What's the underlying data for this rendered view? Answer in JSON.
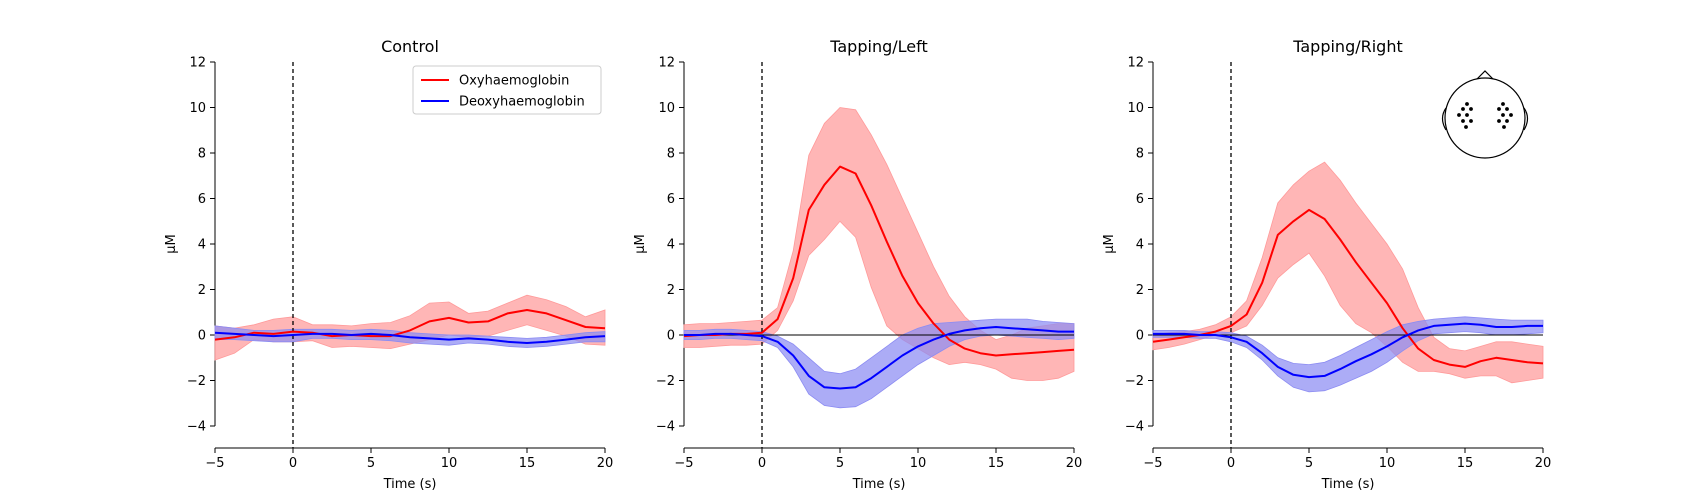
{
  "figure": {
    "background": "#ffffff",
    "colors": {
      "oxy": "#ff0000",
      "oxy_band": "#ff9a9a",
      "deoxy": "#0000ff",
      "deoxy_band": "#8c8cf2"
    }
  },
  "chart_data": [
    {
      "type": "line",
      "title": "Control",
      "xlabel": "Time (s)",
      "ylabel": "µM",
      "xlim": [
        -5,
        20
      ],
      "ylim": [
        -4,
        12
      ],
      "xticks": [
        -5,
        0,
        5,
        10,
        15,
        20
      ],
      "yticks": [
        -4,
        -2,
        0,
        2,
        4,
        6,
        8,
        10,
        12
      ],
      "xtick_labels": [
        "−5",
        "0",
        "5",
        "10",
        "15",
        "20"
      ],
      "ytick_labels": [
        "−4",
        "−2",
        "0",
        "2",
        "4",
        "6",
        "8",
        "10",
        "12"
      ],
      "event_line_x": 0,
      "zero_line": false,
      "grid": false,
      "legend": {
        "position": "top-right",
        "entries": [
          "Oxyhaemoglobin",
          "Deoxyhaemoglobin"
        ]
      },
      "x": [
        -5,
        -3.75,
        -2.5,
        -1.25,
        0,
        1.25,
        2.5,
        3.75,
        5,
        6.25,
        7.5,
        8.75,
        10,
        11.25,
        12.5,
        13.75,
        15,
        16.25,
        17.5,
        18.75,
        20
      ],
      "series": [
        {
          "name": "Oxyhaemoglobin",
          "color": "#ff0000",
          "values": [
            -0.2,
            -0.1,
            0.1,
            0.05,
            0.15,
            0.1,
            -0.05,
            0.0,
            -0.05,
            -0.05,
            0.2,
            0.6,
            0.75,
            0.55,
            0.6,
            0.95,
            1.1,
            0.95,
            0.65,
            0.35,
            0.3
          ],
          "lower": [
            -1.1,
            -0.8,
            -0.2,
            -0.3,
            -0.3,
            -0.25,
            -0.55,
            -0.5,
            -0.55,
            -0.6,
            -0.4,
            -0.2,
            0.0,
            -0.1,
            -0.05,
            0.2,
            0.45,
            0.2,
            -0.05,
            -0.4,
            -0.45
          ],
          "upper": [
            0.4,
            0.3,
            0.45,
            0.7,
            0.8,
            0.45,
            0.45,
            0.4,
            0.5,
            0.55,
            0.85,
            1.4,
            1.45,
            0.95,
            1.05,
            1.4,
            1.75,
            1.55,
            1.25,
            0.8,
            1.1
          ]
        },
        {
          "name": "Deoxyhaemoglobin",
          "color": "#0000ff",
          "values": [
            0.1,
            0.05,
            0.0,
            -0.05,
            0.0,
            0.05,
            0.05,
            0.0,
            0.05,
            0.0,
            -0.1,
            -0.15,
            -0.2,
            -0.15,
            -0.2,
            -0.3,
            -0.35,
            -0.3,
            -0.2,
            -0.1,
            -0.05
          ],
          "lower": [
            -0.2,
            -0.2,
            -0.25,
            -0.3,
            -0.3,
            -0.15,
            -0.15,
            -0.2,
            -0.2,
            -0.25,
            -0.35,
            -0.4,
            -0.45,
            -0.35,
            -0.4,
            -0.5,
            -0.55,
            -0.5,
            -0.4,
            -0.3,
            -0.3
          ],
          "upper": [
            0.4,
            0.3,
            0.2,
            0.2,
            0.25,
            0.25,
            0.25,
            0.2,
            0.25,
            0.2,
            0.1,
            0.05,
            0.0,
            0.0,
            -0.05,
            -0.1,
            -0.15,
            -0.1,
            0.0,
            0.1,
            0.15
          ]
        }
      ]
    },
    {
      "type": "line",
      "title": "Tapping/Left",
      "xlabel": "Time (s)",
      "ylabel": "µM",
      "xlim": [
        -5,
        20
      ],
      "ylim": [
        -4,
        12
      ],
      "xticks": [
        -5,
        0,
        5,
        10,
        15,
        20
      ],
      "yticks": [
        -4,
        -2,
        0,
        2,
        4,
        6,
        8,
        10,
        12
      ],
      "xtick_labels": [
        "−5",
        "0",
        "5",
        "10",
        "15",
        "20"
      ],
      "ytick_labels": [
        "−4",
        "−2",
        "0",
        "2",
        "4",
        "6",
        "8",
        "10",
        "12"
      ],
      "event_line_x": 0,
      "zero_line": true,
      "grid": false,
      "x": [
        -5,
        -4,
        -3,
        -2,
        -1,
        0,
        1,
        2,
        3,
        4,
        5,
        6,
        7,
        8,
        9,
        10,
        11,
        12,
        13,
        14,
        15,
        16,
        17,
        18,
        19,
        20
      ],
      "series": [
        {
          "name": "Oxyhaemoglobin",
          "color": "#ff0000",
          "values": [
            -0.05,
            0.0,
            0.0,
            0.05,
            0.05,
            0.1,
            0.7,
            2.5,
            5.5,
            6.6,
            7.4,
            7.1,
            5.7,
            4.1,
            2.6,
            1.4,
            0.5,
            -0.2,
            -0.6,
            -0.8,
            -0.9,
            -0.85,
            -0.8,
            -0.75,
            -0.7,
            -0.65
          ],
          "lower": [
            -0.55,
            -0.55,
            -0.5,
            -0.45,
            -0.45,
            -0.4,
            0.2,
            1.5,
            3.5,
            4.2,
            5.0,
            4.3,
            2.1,
            0.4,
            -0.2,
            -0.6,
            -1.0,
            -1.3,
            -1.2,
            -1.3,
            -1.5,
            -1.9,
            -2.0,
            -2.0,
            -1.9,
            -1.6
          ],
          "upper": [
            0.45,
            0.5,
            0.5,
            0.55,
            0.6,
            0.65,
            1.2,
            3.7,
            7.9,
            9.3,
            10.0,
            9.9,
            8.8,
            7.5,
            6.0,
            4.5,
            3.0,
            1.7,
            0.8,
            0.2,
            -0.2,
            0.0,
            0.3,
            0.4,
            0.5,
            0.5
          ]
        },
        {
          "name": "Deoxyhaemoglobin",
          "color": "#0000ff",
          "values": [
            0.0,
            0.0,
            0.05,
            0.05,
            0.0,
            -0.05,
            -0.3,
            -0.9,
            -1.8,
            -2.3,
            -2.35,
            -2.3,
            -1.9,
            -1.4,
            -0.9,
            -0.5,
            -0.2,
            0.05,
            0.2,
            0.3,
            0.35,
            0.3,
            0.25,
            0.2,
            0.15,
            0.15
          ],
          "lower": [
            -0.2,
            -0.2,
            -0.15,
            -0.15,
            -0.2,
            -0.25,
            -0.55,
            -1.4,
            -2.6,
            -3.1,
            -3.2,
            -3.15,
            -2.8,
            -2.3,
            -1.8,
            -1.3,
            -0.9,
            -0.5,
            -0.2,
            -0.05,
            0.0,
            -0.05,
            -0.1,
            -0.15,
            -0.2,
            -0.15
          ],
          "upper": [
            0.2,
            0.2,
            0.25,
            0.25,
            0.2,
            0.15,
            -0.05,
            -0.4,
            -1.0,
            -1.6,
            -1.7,
            -1.5,
            -1.0,
            -0.5,
            0.0,
            0.3,
            0.5,
            0.55,
            0.6,
            0.65,
            0.7,
            0.7,
            0.7,
            0.6,
            0.55,
            0.5
          ]
        }
      ]
    },
    {
      "type": "line",
      "title": "Tapping/Right",
      "xlabel": "Time (s)",
      "ylabel": "µM",
      "xlim": [
        -5,
        20
      ],
      "ylim": [
        -4,
        12
      ],
      "xticks": [
        -5,
        0,
        5,
        10,
        15,
        20
      ],
      "yticks": [
        -4,
        -2,
        0,
        2,
        4,
        6,
        8,
        10,
        12
      ],
      "xtick_labels": [
        "−5",
        "0",
        "5",
        "10",
        "15",
        "20"
      ],
      "ytick_labels": [
        "−4",
        "−2",
        "0",
        "2",
        "4",
        "6",
        "8",
        "10",
        "12"
      ],
      "event_line_x": 0,
      "zero_line": true,
      "grid": false,
      "inset": "head-sensor-layout",
      "x": [
        -5,
        -4,
        -3,
        -2,
        -1,
        0,
        1,
        2,
        3,
        4,
        5,
        6,
        7,
        8,
        9,
        10,
        11,
        12,
        13,
        14,
        15,
        16,
        17,
        18,
        19,
        20
      ],
      "series": [
        {
          "name": "Oxyhaemoglobin",
          "color": "#ff0000",
          "values": [
            -0.3,
            -0.2,
            -0.1,
            0.0,
            0.15,
            0.4,
            0.9,
            2.3,
            4.4,
            5.0,
            5.5,
            5.1,
            4.2,
            3.2,
            2.3,
            1.4,
            0.3,
            -0.6,
            -1.1,
            -1.3,
            -1.4,
            -1.15,
            -1.0,
            -1.1,
            -1.2,
            -1.25
          ],
          "lower": [
            -0.65,
            -0.55,
            -0.4,
            -0.2,
            0.0,
            0.1,
            0.4,
            1.3,
            2.5,
            3.1,
            3.6,
            2.6,
            1.3,
            0.5,
            0.1,
            -0.5,
            -1.2,
            -1.6,
            -1.6,
            -1.7,
            -1.9,
            -1.8,
            -1.8,
            -2.1,
            -2.0,
            -1.9
          ],
          "upper": [
            0.0,
            0.1,
            0.15,
            0.25,
            0.45,
            0.8,
            1.5,
            3.4,
            5.8,
            6.6,
            7.2,
            7.6,
            6.8,
            5.8,
            4.9,
            4.0,
            2.9,
            1.2,
            -0.1,
            -0.6,
            -0.7,
            -0.5,
            -0.3,
            -0.3,
            -0.4,
            -0.5
          ]
        },
        {
          "name": "Deoxyhaemoglobin",
          "color": "#0000ff",
          "values": [
            0.05,
            0.05,
            0.05,
            0.0,
            0.0,
            -0.1,
            -0.3,
            -0.8,
            -1.4,
            -1.75,
            -1.85,
            -1.8,
            -1.5,
            -1.15,
            -0.85,
            -0.5,
            -0.1,
            0.2,
            0.4,
            0.45,
            0.5,
            0.45,
            0.35,
            0.35,
            0.4,
            0.4
          ],
          "lower": [
            -0.1,
            -0.1,
            -0.1,
            -0.15,
            -0.15,
            -0.3,
            -0.55,
            -1.1,
            -1.8,
            -2.3,
            -2.5,
            -2.45,
            -2.2,
            -1.9,
            -1.6,
            -1.2,
            -0.7,
            -0.25,
            0.05,
            0.1,
            0.15,
            0.1,
            0.0,
            0.0,
            0.05,
            0.1
          ],
          "upper": [
            0.2,
            0.2,
            0.2,
            0.15,
            0.15,
            0.1,
            -0.05,
            -0.45,
            -1.0,
            -1.25,
            -1.3,
            -1.2,
            -0.9,
            -0.55,
            -0.2,
            0.15,
            0.45,
            0.6,
            0.7,
            0.75,
            0.8,
            0.75,
            0.7,
            0.65,
            0.65,
            0.65
          ]
        }
      ]
    }
  ]
}
